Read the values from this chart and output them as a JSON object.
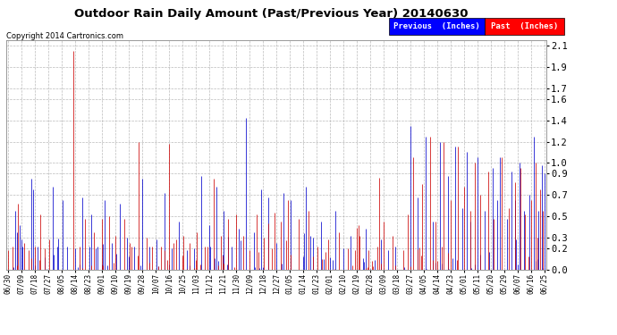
{
  "title": "Outdoor Rain Daily Amount (Past/Previous Year) 20140630",
  "copyright": "Copyright 2014 Cartronics.com",
  "legend_previous": "Previous  (Inches)",
  "legend_past": "Past  (Inches)",
  "fig_bg_color": "#ffffff",
  "plot_bg_color": "#ffffff",
  "grid_color": "#aaaaaa",
  "previous_color": "#0000cc",
  "past_color": "#cc0000",
  "yticks": [
    0.0,
    0.2,
    0.3,
    0.5,
    0.7,
    0.9,
    1.0,
    1.2,
    1.4,
    1.6,
    1.7,
    1.9,
    2.1
  ],
  "ymax": 2.15,
  "ymin": 0.0,
  "xtick_dates": [
    "06/30",
    "07/09",
    "07/18",
    "07/27",
    "08/05",
    "08/14",
    "08/23",
    "09/01",
    "09/10",
    "09/19",
    "09/28",
    "10/07",
    "10/16",
    "10/25",
    "11/03",
    "11/12",
    "11/21",
    "11/30",
    "12/09",
    "12/18",
    "12/27",
    "01/05",
    "01/14",
    "01/23",
    "02/01",
    "02/10",
    "02/19",
    "02/28",
    "03/09",
    "03/18",
    "03/27",
    "04/05",
    "04/14",
    "04/23",
    "05/01",
    "05/11",
    "05/20",
    "05/29",
    "06/07",
    "06/16",
    "06/25"
  ],
  "n_days": 361
}
